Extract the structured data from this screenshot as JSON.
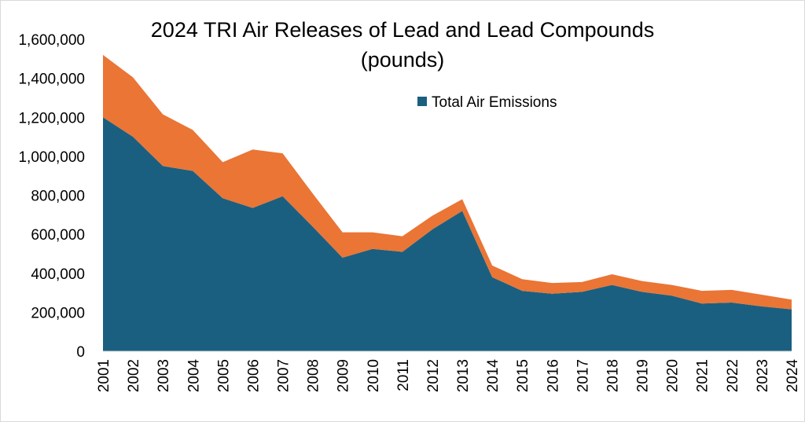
{
  "chart_data": {
    "type": "area",
    "title_line1": "2024 TRI Air Releases of Lead and Lead Compounds",
    "title_line2": "(pounds)",
    "xlabel": "",
    "ylabel": "",
    "ylim": [
      0,
      1600000
    ],
    "y_ticks": [
      0,
      200000,
      400000,
      600000,
      800000,
      1000000,
      1200000,
      1400000,
      1600000
    ],
    "y_tick_labels": [
      "0",
      "200,000",
      "400,000",
      "600,000",
      "800,000",
      "1,000,000",
      "1,200,000",
      "1,400,000",
      "1,600,000"
    ],
    "categories": [
      "2001",
      "2002",
      "2003",
      "2004",
      "2005",
      "2006",
      "2007",
      "2008",
      "2009",
      "2010",
      "2011",
      "2012",
      "2013",
      "2014",
      "2015",
      "2016",
      "2017",
      "2018",
      "2019",
      "2020",
      "2021",
      "2022",
      "2023",
      "2024"
    ],
    "legend_position": "top-right",
    "series": [
      {
        "name": "Total Air Emissions",
        "color": "#1b5f80",
        "in_legend": true,
        "values": [
          1200000,
          1100000,
          950000,
          925000,
          785000,
          735000,
          795000,
          640000,
          480000,
          525000,
          510000,
          625000,
          720000,
          380000,
          310000,
          295000,
          305000,
          340000,
          305000,
          285000,
          245000,
          250000,
          230000,
          215000
        ]
      },
      {
        "name": "",
        "color": "#ea7535",
        "in_legend": false,
        "values": [
          320000,
          305000,
          265000,
          210000,
          185000,
          300000,
          220000,
          170000,
          130000,
          85000,
          80000,
          70000,
          60000,
          60000,
          60000,
          55000,
          50000,
          55000,
          55000,
          55000,
          65000,
          65000,
          60000,
          50000
        ]
      }
    ]
  }
}
